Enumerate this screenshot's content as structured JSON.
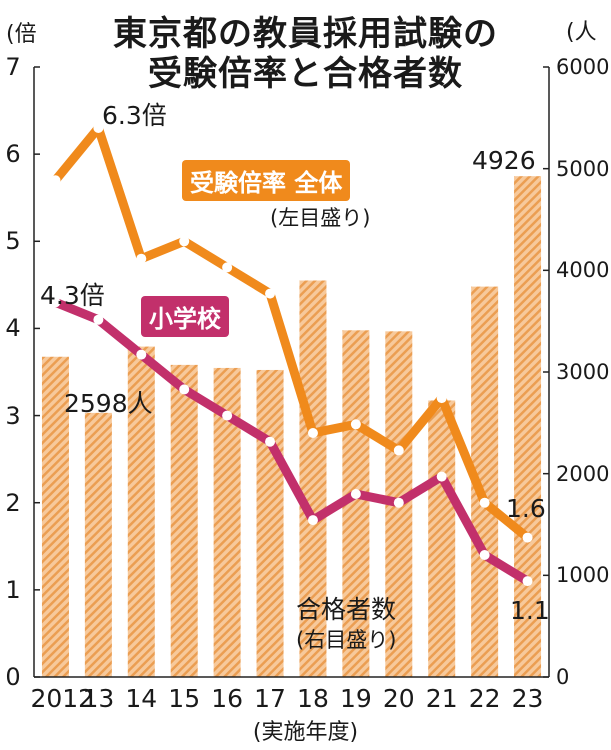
{
  "title_line1": "東京都の教員採用試験の",
  "title_line2": "受験倍率と合格者数",
  "left_unit": "(倍",
  "right_unit": "(人",
  "x_caption": "(実施年度)",
  "labels": {
    "total_series": "受験倍率 全体",
    "total_note": "(左目盛り)",
    "elem_series": "小学校",
    "bars_series": "合格者数",
    "bars_note": "(右目盛り)",
    "total_first": "6.3倍",
    "elem_first": "4.3倍",
    "bars_first": "2598人",
    "bars_last": "4926",
    "total_last": "1.6",
    "elem_last": "1.1"
  },
  "colors": {
    "orange": "#f08a1c",
    "magenta": "#c2306b",
    "bar_light": "#f7c99b",
    "bar_stripe": "#eb9e52"
  },
  "chart_data": {
    "type": "bar+line",
    "categories": [
      "2012",
      "13",
      "14",
      "15",
      "16",
      "17",
      "18",
      "19",
      "20",
      "21",
      "22",
      "23"
    ],
    "bars": {
      "name": "合格者数",
      "axis": "right",
      "values": [
        3150,
        2598,
        3250,
        3070,
        3040,
        3020,
        3900,
        3410,
        3400,
        2720,
        3840,
        4926
      ]
    },
    "series": [
      {
        "name": "受験倍率 全体",
        "axis": "left",
        "color": "#f08a1c",
        "values": [
          5.7,
          6.3,
          4.8,
          5.0,
          4.7,
          4.4,
          2.8,
          2.9,
          2.6,
          3.2,
          2.0,
          1.6
        ]
      },
      {
        "name": "小学校",
        "axis": "left",
        "color": "#c2306b",
        "values": [
          4.3,
          4.1,
          3.7,
          3.3,
          3.0,
          2.7,
          1.8,
          2.1,
          2.0,
          2.3,
          1.4,
          1.1
        ]
      }
    ],
    "y_left": {
      "ticks": [
        "0",
        "1",
        "2",
        "3",
        "4",
        "5",
        "6",
        "7"
      ],
      "range": [
        0,
        7
      ]
    },
    "y_right": {
      "ticks": [
        "0",
        "1000",
        "2000",
        "3000",
        "4000",
        "5000",
        "6000"
      ],
      "range": [
        0,
        6000
      ]
    },
    "grid": false
  }
}
